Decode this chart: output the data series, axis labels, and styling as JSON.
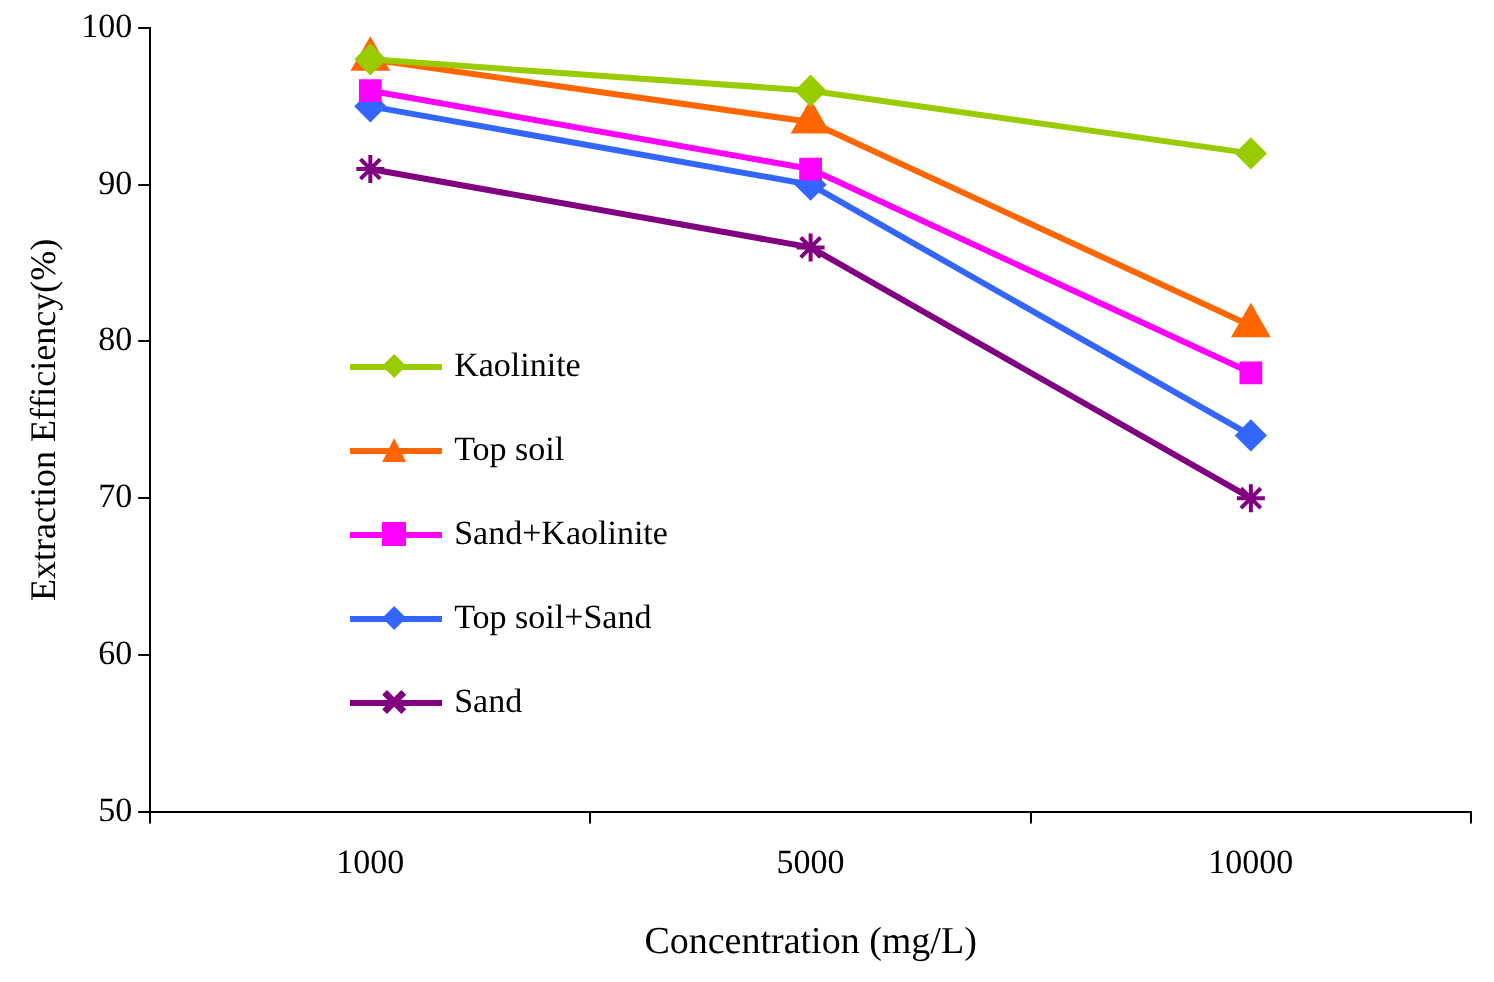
{
  "chart_data": {
    "type": "line",
    "xlabel": "Concentration (mg/L)",
    "ylabel": "Extraction Efficiency(%)",
    "categories": [
      "1000",
      "5000",
      "10000"
    ],
    "series": [
      {
        "name": "Kaolinite",
        "color": "#99cc00",
        "marker": "diamond",
        "values": [
          98,
          96,
          92
        ]
      },
      {
        "name": "Top soil",
        "color": "#ff6600",
        "marker": "triangle",
        "values": [
          98,
          94,
          81
        ]
      },
      {
        "name": "Sand+Kaolinite",
        "color": "#ff00ff",
        "marker": "square",
        "values": [
          96,
          91,
          78
        ]
      },
      {
        "name": "Top soil+Sand",
        "color": "#3366ff",
        "marker": "diamond",
        "values": [
          95,
          90,
          74
        ]
      },
      {
        "name": "Sand",
        "color": "#800080",
        "marker": "cross",
        "values": [
          91,
          86,
          70
        ]
      }
    ],
    "ylim": [
      50,
      100
    ],
    "yticks": [
      50,
      60,
      70,
      80,
      90,
      100
    ],
    "grid": false,
    "legend": "left",
    "line_style": "solid"
  }
}
